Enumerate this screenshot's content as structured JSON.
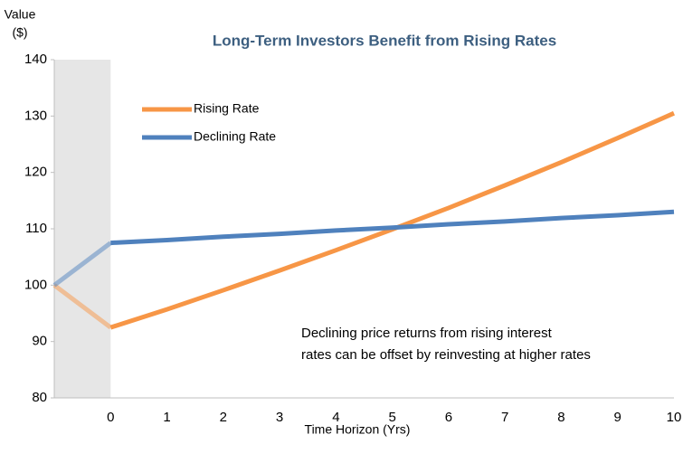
{
  "chart_data": {
    "type": "line",
    "title": "Long-Term Investors Benefit from Rising Rates",
    "y_label_lines": [
      "Value",
      "($)"
    ],
    "x_label": "Time Horizon (Yrs)",
    "annotation_lines": [
      "Declining price returns from rising interest",
      "rates can be offset by reinvesting at higher rates"
    ],
    "x": [
      -1,
      0,
      1,
      2,
      3,
      4,
      5,
      6,
      7,
      8,
      9,
      10
    ],
    "series": [
      {
        "name": "Rising Rate",
        "color": "#f79646",
        "values": [
          100,
          92.5,
          95.7,
          99.1,
          102.6,
          106.2,
          109.9,
          113.7,
          117.7,
          121.8,
          126.1,
          130.5
        ]
      },
      {
        "name": "Declining Rate",
        "color": "#4f81bd",
        "values": [
          100,
          107.5,
          108.0,
          108.6,
          109.1,
          109.7,
          110.2,
          110.8,
          111.3,
          111.9,
          112.4,
          113.0
        ]
      }
    ],
    "shaded_xrange": [
      -1,
      0
    ],
    "xlim": [
      -1,
      10
    ],
    "xticks": [
      0,
      1,
      2,
      3,
      4,
      5,
      6,
      7,
      8,
      9,
      10
    ],
    "ylim": [
      80,
      140
    ],
    "yticks": [
      80,
      90,
      100,
      110,
      120,
      130,
      140
    ],
    "grid": false,
    "legend": "upper left"
  }
}
